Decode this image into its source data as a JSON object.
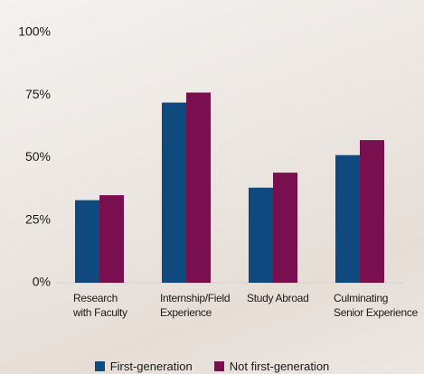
{
  "chart_data": {
    "type": "bar",
    "categories": [
      "Research\nwith Faculty",
      "Internship/Field\nExperience",
      "Study Abroad",
      "Culminating\nSenior Experience"
    ],
    "series": [
      {
        "name": "First-generation",
        "color": "#0e4a7d",
        "values": [
          33,
          72,
          38,
          51
        ]
      },
      {
        "name": "Not first-generation",
        "color": "#7a0f50",
        "values": [
          35,
          76,
          44,
          57
        ]
      }
    ],
    "ylim": [
      0,
      100
    ],
    "yticks": [
      {
        "value": 0,
        "label": "0%"
      },
      {
        "value": 25,
        "label": "25%"
      },
      {
        "value": 50,
        "label": "50%"
      },
      {
        "value": 75,
        "label": "75%"
      },
      {
        "value": 100,
        "label": "100%"
      }
    ],
    "legend": "bottom"
  }
}
